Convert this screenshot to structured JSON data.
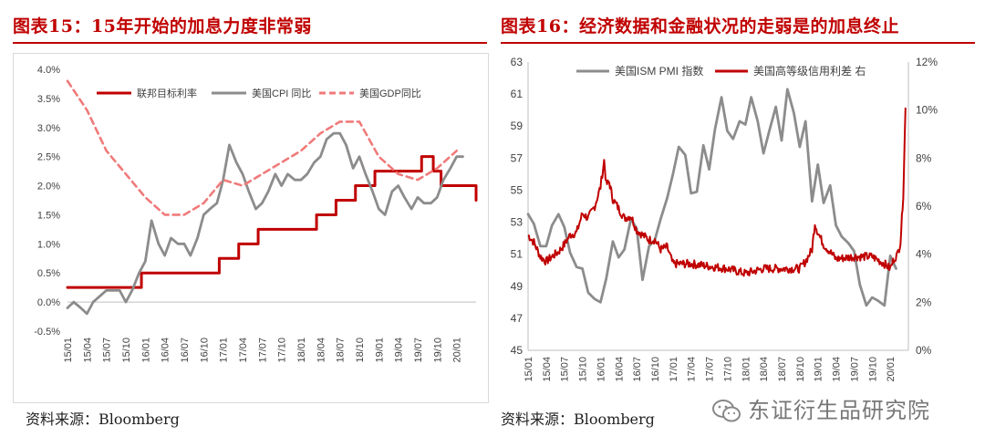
{
  "left": {
    "title": "图表15：15年开始的加息力度非常弱",
    "source": "资料来源：Bloomberg"
  },
  "right": {
    "title": "图表16：经济数据和金融状况的走弱是的加息终止",
    "source": "资料来源：Bloomberg"
  },
  "watermark": "东证衍生品研究院",
  "colors": {
    "red": "#c00000",
    "gray": "#8c8c8c",
    "pink": "#f07a7a"
  },
  "chart_data": [
    {
      "type": "line",
      "title": "图表15：15年开始的加息力度非常弱",
      "xlabel": "",
      "ylabel": "",
      "ylim": [
        -0.5,
        4.0
      ],
      "xlim": [
        2015.0,
        2020.25
      ],
      "yticks": [
        "4.0%",
        "3.5%",
        "3.0%",
        "2.5%",
        "2.0%",
        "1.5%",
        "1.0%",
        "0.5%",
        "0.0%",
        "-0.5%"
      ],
      "ytick_values": [
        4.0,
        3.5,
        3.0,
        2.5,
        2.0,
        1.5,
        1.0,
        0.5,
        0.0,
        -0.5
      ],
      "xticks": [
        "15/01",
        "15/04",
        "15/07",
        "15/10",
        "16/01",
        "16/04",
        "16/07",
        "16/10",
        "17/01",
        "17/04",
        "17/07",
        "17/10",
        "18/01",
        "18/04",
        "18/07",
        "18/10",
        "19/01",
        "19/04",
        "19/07",
        "19/10",
        "20/01"
      ],
      "legend": "top",
      "series": [
        {
          "name": "联邦目标利率",
          "color": "#c00000",
          "style": "step",
          "x": [
            2015.0,
            2015.95,
            2016.95,
            2017.2,
            2017.45,
            2017.95,
            2018.2,
            2018.45,
            2018.7,
            2018.95,
            2019.55,
            2019.7,
            2019.8,
            2020.25
          ],
          "y": [
            0.25,
            0.5,
            0.75,
            1.0,
            1.25,
            1.25,
            1.5,
            1.75,
            2.0,
            2.25,
            2.5,
            2.25,
            2.0,
            1.75
          ]
        },
        {
          "name": "美国CPI 同比",
          "color": "#8c8c8c",
          "style": "solid",
          "x": [
            2015.0,
            2015.08,
            2015.17,
            2015.25,
            2015.33,
            2015.5,
            2015.67,
            2015.75,
            2015.83,
            2015.92,
            2016.0,
            2016.08,
            2016.17,
            2016.25,
            2016.33,
            2016.42,
            2016.5,
            2016.58,
            2016.67,
            2016.75,
            2016.83,
            2016.92,
            2017.0,
            2017.08,
            2017.17,
            2017.25,
            2017.33,
            2017.42,
            2017.5,
            2017.58,
            2017.67,
            2017.75,
            2017.83,
            2017.92,
            2018.0,
            2018.08,
            2018.17,
            2018.25,
            2018.33,
            2018.42,
            2018.5,
            2018.58,
            2018.67,
            2018.75,
            2018.83,
            2018.92,
            2019.0,
            2019.08,
            2019.17,
            2019.25,
            2019.33,
            2019.42,
            2019.5,
            2019.58,
            2019.67,
            2019.75,
            2019.83,
            2019.92,
            2020.0,
            2020.08
          ],
          "y": [
            -0.1,
            0.0,
            -0.1,
            -0.2,
            0.0,
            0.2,
            0.2,
            0.0,
            0.2,
            0.5,
            0.7,
            1.4,
            1.0,
            0.8,
            1.1,
            1.0,
            1.0,
            0.8,
            1.1,
            1.5,
            1.6,
            1.7,
            2.1,
            2.7,
            2.4,
            2.2,
            1.9,
            1.6,
            1.7,
            1.9,
            2.2,
            2.0,
            2.2,
            2.1,
            2.1,
            2.2,
            2.4,
            2.5,
            2.8,
            2.9,
            2.9,
            2.7,
            2.3,
            2.5,
            2.2,
            1.9,
            1.6,
            1.5,
            1.9,
            2.0,
            1.8,
            1.6,
            1.8,
            1.7,
            1.7,
            1.8,
            2.1,
            2.3,
            2.5,
            2.5
          ]
        },
        {
          "name": "美国GDP同比",
          "color": "#f07a7a",
          "style": "dashed",
          "x": [
            2015.0,
            2015.25,
            2015.5,
            2015.75,
            2016.0,
            2016.25,
            2016.5,
            2016.75,
            2017.0,
            2017.25,
            2017.5,
            2017.75,
            2018.0,
            2018.25,
            2018.5,
            2018.75,
            2019.0,
            2019.25,
            2019.5,
            2019.75,
            2020.0
          ],
          "y": [
            3.8,
            3.3,
            2.6,
            2.2,
            1.8,
            1.5,
            1.5,
            1.7,
            2.1,
            2.0,
            2.2,
            2.4,
            2.6,
            2.9,
            3.1,
            3.1,
            2.5,
            2.2,
            2.1,
            2.3,
            2.6
          ]
        }
      ]
    },
    {
      "type": "line",
      "title": "图表16：经济数据和金融状况的走弱是的加息终止",
      "xlabel": "",
      "ylabel": "",
      "ylim": [
        45,
        63
      ],
      "y2lim": [
        0,
        12
      ],
      "xlim": [
        2015.0,
        2020.25
      ],
      "yticks": [
        "63",
        "61",
        "59",
        "57",
        "55",
        "53",
        "51",
        "49",
        "47",
        "45"
      ],
      "ytick_values": [
        63,
        61,
        59,
        57,
        55,
        53,
        51,
        49,
        47,
        45
      ],
      "y2ticks": [
        "12%",
        "10%",
        "8%",
        "6%",
        "4%",
        "2%",
        "0%"
      ],
      "y2tick_values": [
        12,
        10,
        8,
        6,
        4,
        2,
        0
      ],
      "xticks": [
        "15/01",
        "15/04",
        "15/07",
        "15/10",
        "16/01",
        "16/04",
        "16/07",
        "16/10",
        "17/01",
        "17/04",
        "17/07",
        "17/10",
        "18/01",
        "18/04",
        "18/07",
        "18/10",
        "19/01",
        "19/04",
        "19/07",
        "19/10",
        "20/01"
      ],
      "legend": "top",
      "series": [
        {
          "name": "美国ISM PMI 指数",
          "color": "#8c8c8c",
          "axis": "left",
          "x": [
            2015.0,
            2015.08,
            2015.17,
            2015.25,
            2015.33,
            2015.42,
            2015.5,
            2015.58,
            2015.67,
            2015.75,
            2015.83,
            2015.92,
            2016.0,
            2016.08,
            2016.17,
            2016.25,
            2016.33,
            2016.42,
            2016.5,
            2016.58,
            2016.67,
            2016.75,
            2016.83,
            2016.92,
            2017.0,
            2017.08,
            2017.17,
            2017.25,
            2017.33,
            2017.42,
            2017.5,
            2017.58,
            2017.67,
            2017.75,
            2017.83,
            2017.92,
            2018.0,
            2018.08,
            2018.17,
            2018.25,
            2018.33,
            2018.42,
            2018.5,
            2018.58,
            2018.67,
            2018.75,
            2018.83,
            2018.92,
            2019.0,
            2019.08,
            2019.17,
            2019.25,
            2019.33,
            2019.42,
            2019.5,
            2019.58,
            2019.67,
            2019.75,
            2019.83,
            2019.92,
            2020.0,
            2020.08
          ],
          "y": [
            53.5,
            52.9,
            51.5,
            51.5,
            52.8,
            53.5,
            52.7,
            51.1,
            50.2,
            50.1,
            48.6,
            48.2,
            48.0,
            49.5,
            51.8,
            50.8,
            51.3,
            53.2,
            52.6,
            49.4,
            51.5,
            51.9,
            53.2,
            54.5,
            56.0,
            57.7,
            57.2,
            54.8,
            54.9,
            57.8,
            56.3,
            58.8,
            60.8,
            58.7,
            58.2,
            59.3,
            59.1,
            60.8,
            59.3,
            57.3,
            58.7,
            60.2,
            58.1,
            61.3,
            59.8,
            57.7,
            59.3,
            54.3,
            56.6,
            54.2,
            55.3,
            52.8,
            52.1,
            51.7,
            51.2,
            49.1,
            47.8,
            48.3,
            48.1,
            47.8,
            50.9,
            50.1
          ]
        },
        {
          "name": "美国高等级信用利差 右",
          "color": "#c00000",
          "axis": "right",
          "x": [
            2015.0,
            2015.08,
            2015.17,
            2015.25,
            2015.33,
            2015.42,
            2015.5,
            2015.58,
            2015.67,
            2015.75,
            2015.83,
            2015.92,
            2016.0,
            2016.05,
            2016.08,
            2016.12,
            2016.17,
            2016.25,
            2016.33,
            2016.42,
            2016.5,
            2016.58,
            2016.67,
            2016.75,
            2016.83,
            2016.92,
            2017.0,
            2017.25,
            2017.5,
            2017.75,
            2018.0,
            2018.25,
            2018.5,
            2018.75,
            2018.83,
            2018.92,
            2018.96,
            2019.0,
            2019.08,
            2019.17,
            2019.25,
            2019.5,
            2019.75,
            2019.92,
            2020.0,
            2020.05,
            2020.1,
            2020.14,
            2020.18,
            2020.21
          ],
          "y": [
            4.8,
            4.5,
            3.9,
            3.7,
            3.9,
            4.1,
            4.4,
            4.8,
            4.9,
            5.7,
            5.5,
            6.0,
            6.8,
            7.9,
            6.9,
            7.0,
            6.3,
            5.9,
            5.5,
            5.6,
            5.0,
            4.8,
            4.6,
            4.6,
            4.2,
            4.3,
            3.6,
            3.6,
            3.5,
            3.4,
            3.2,
            3.4,
            3.4,
            3.4,
            3.7,
            4.2,
            5.3,
            4.9,
            4.4,
            4.1,
            3.8,
            3.9,
            3.9,
            3.6,
            3.4,
            3.8,
            4.0,
            4.5,
            6.5,
            10.1
          ]
        }
      ]
    }
  ]
}
